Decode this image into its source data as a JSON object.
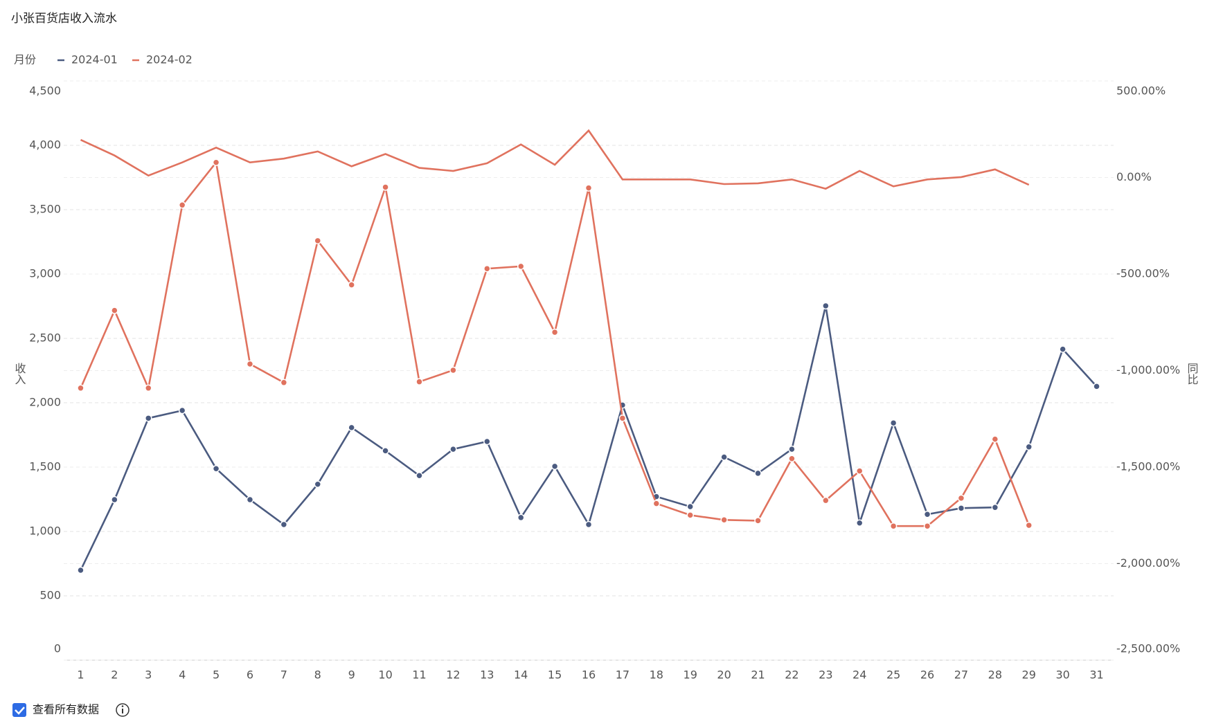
{
  "chart_data": {
    "type": "line",
    "title": "小张百货店收入流水",
    "legend_title": "月份",
    "ylabel": "收入",
    "y2label": "同比",
    "categories": [
      "1",
      "2",
      "3",
      "4",
      "5",
      "6",
      "7",
      "8",
      "9",
      "10",
      "11",
      "12",
      "13",
      "14",
      "15",
      "16",
      "17",
      "18",
      "19",
      "20",
      "21",
      "22",
      "23",
      "24",
      "25",
      "26",
      "27",
      "28",
      "29",
      "30",
      "31"
    ],
    "series": [
      {
        "name": "2024-01",
        "color": "#4b5b80",
        "values": [
          699,
          1247,
          1880,
          1940,
          1488,
          1247,
          1054,
          1367,
          1807,
          1627,
          1434,
          1639,
          1699,
          1108,
          1506,
          1054,
          1982,
          1271,
          1193,
          1578,
          1452,
          1639,
          2753,
          1066,
          1843,
          1133,
          1181,
          1187,
          1657,
          2416,
          2127
        ]
      },
      {
        "name": "2024-02",
        "color": "#e0725e",
        "values": [
          2114,
          2717,
          2114,
          3536,
          3867,
          2301,
          2157,
          3259,
          2916,
          3675,
          2163,
          2253,
          3042,
          3060,
          2548,
          3669,
          1880,
          1217,
          1127,
          1090,
          1084,
          1566,
          1241,
          1470,
          1042,
          1042,
          1259,
          1717,
          1048,
          null,
          null
        ]
      }
    ],
    "yoy": {
      "axis": "y2",
      "color": "#e0725e",
      "values": [
        195,
        114,
        10,
        78,
        155,
        78,
        98,
        135,
        58,
        122,
        50,
        34,
        74,
        171,
        66,
        243,
        -10,
        -10,
        -10,
        -34,
        -30,
        -10,
        -58,
        34,
        -46,
        -10,
        2,
        42,
        -38,
        null,
        null
      ]
    },
    "ylim": [
      0,
      4500
    ],
    "yticks": [
      0,
      500,
      {
        "value": 1000,
        "label": "1,000"
      },
      {
        "value": 1500,
        "label": "1,500"
      },
      {
        "value": 2000,
        "label": "2,000"
      },
      {
        "value": 2500,
        "label": "2,500"
      },
      {
        "value": 3000,
        "label": "3,000"
      },
      {
        "value": 3500,
        "label": "3,500"
      },
      {
        "value": 4000,
        "label": "4,000"
      },
      {
        "value": 4500,
        "label": "4,500"
      }
    ],
    "y2lim": [
      -2500,
      500
    ],
    "y2ticks": [
      {
        "value": -2500,
        "label": "-2,500.00%"
      },
      {
        "value": -2000,
        "label": "-2,000.00%"
      },
      {
        "value": -1500,
        "label": "-1,500.00%"
      },
      {
        "value": -1000,
        "label": "-1,000.00%"
      },
      {
        "value": -500,
        "label": "-500.00%"
      },
      {
        "value": 0,
        "label": "0.00%"
      },
      {
        "value": 500,
        "label": "500.00%"
      }
    ],
    "grid": true,
    "show_all_label": "查看所有数据"
  }
}
